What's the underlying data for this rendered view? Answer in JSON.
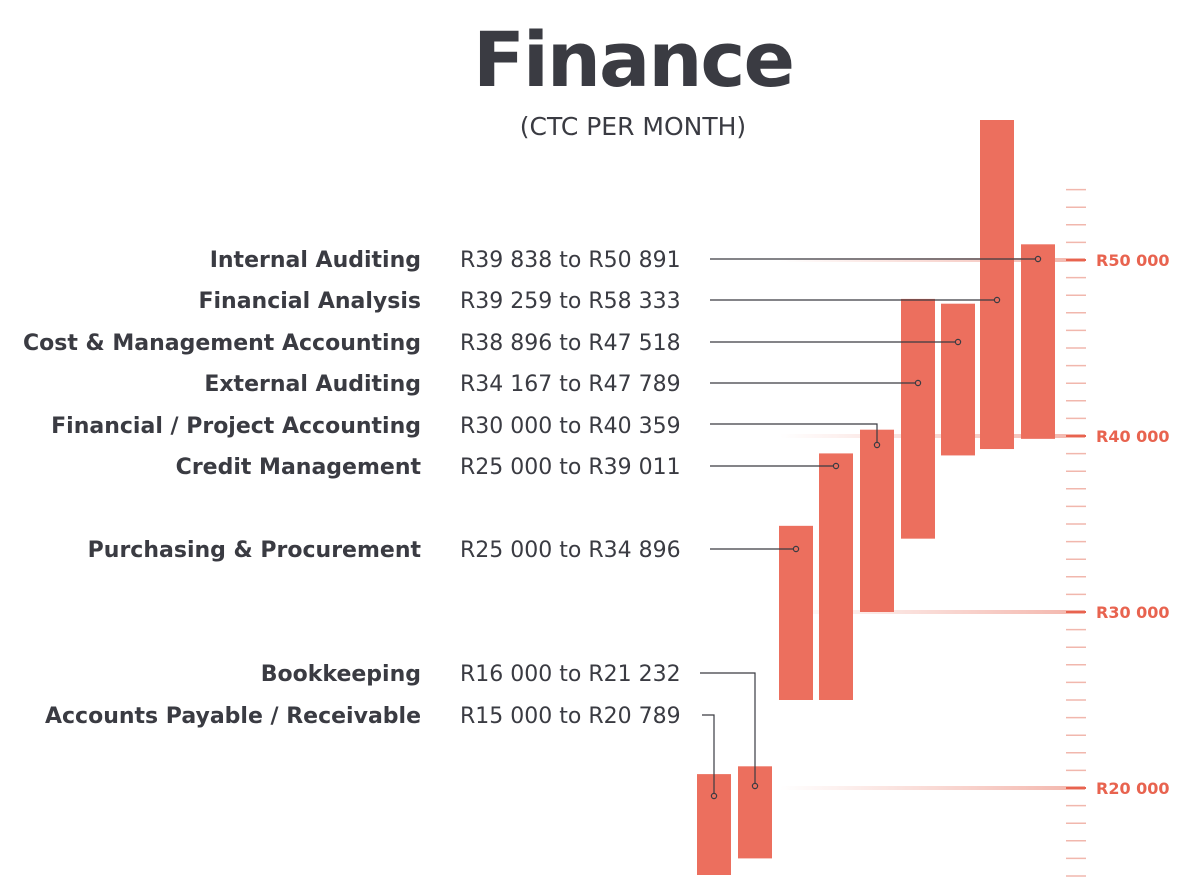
{
  "title": "Finance",
  "subtitle": "(CTC PER MONTH)",
  "chart_data": {
    "type": "bar",
    "orientation": "vertical-floating-range",
    "title": "Finance",
    "subtitle": "(CTC PER MONTH)",
    "bar_color": "#ec6f5e",
    "text_color": "#3a3b42",
    "accent_color": "#e8634f",
    "ylim": [
      14500,
      54000
    ],
    "y_ticks": [
      {
        "value": 20000,
        "label": "R20 000"
      },
      {
        "value": 30000,
        "label": "R30 000"
      },
      {
        "value": 40000,
        "label": "R40 000"
      },
      {
        "value": 50000,
        "label": "R50 000"
      }
    ],
    "categories": [
      {
        "label": "Internal Auditing",
        "range_label": "R39 838 to R50 891",
        "min": 39838,
        "max": 50891
      },
      {
        "label": "Financial Analysis",
        "range_label": "R39 259 to R58 333",
        "min": 39259,
        "max": 58333
      },
      {
        "label": "Cost & Management Accounting",
        "range_label": "R38 896 to R47 518",
        "min": 38896,
        "max": 47518
      },
      {
        "label": "External Auditing",
        "range_label": "R34 167 to R47 789",
        "min": 34167,
        "max": 47789
      },
      {
        "label": "Financial / Project Accounting",
        "range_label": "R30 000 to R40 359",
        "min": 30000,
        "max": 40359
      },
      {
        "label": "Credit Management",
        "range_label": "R25 000 to R39 011",
        "min": 25000,
        "max": 39011
      },
      {
        "label": "Purchasing & Procurement",
        "range_label": "R25 000 to R34 896",
        "min": 25000,
        "max": 34896
      },
      {
        "label": "Bookkeeping",
        "range_label": "R16 000 to R21 232",
        "min": 16000,
        "max": 21232
      },
      {
        "label": "Accounts Payable / Receivable",
        "range_label": "R15 000 to R20 789",
        "min": 15000,
        "max": 20789
      }
    ]
  }
}
